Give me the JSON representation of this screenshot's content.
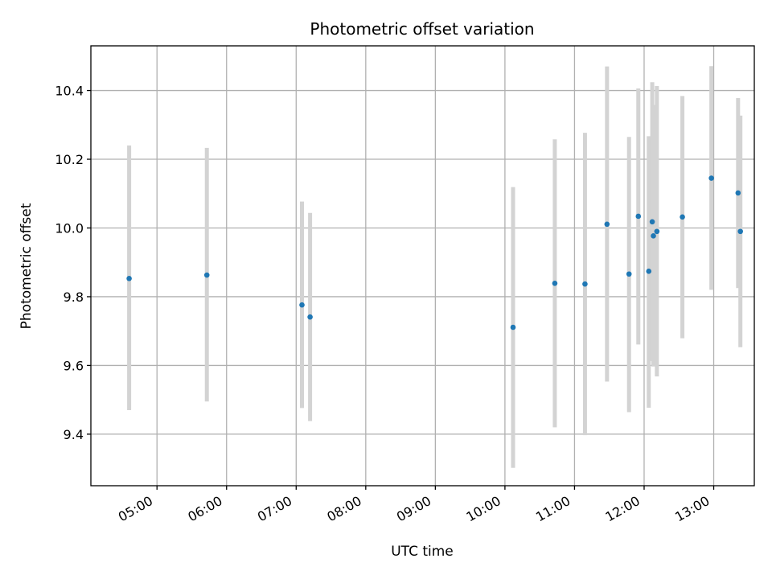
{
  "chart_data": {
    "type": "scatter",
    "title": "Photometric offset variation",
    "xlabel": "UTC time",
    "ylabel": "Photometric offset",
    "x_ticks": [
      "05:00",
      "06:00",
      "07:00",
      "08:00",
      "09:00",
      "10:00",
      "11:00",
      "12:00",
      "13:00"
    ],
    "x_tick_hours": [
      5,
      6,
      7,
      8,
      9,
      10,
      11,
      12,
      13
    ],
    "y_ticks": [
      "9.4",
      "9.6",
      "9.8",
      "10.0",
      "10.2",
      "10.4"
    ],
    "y_tick_values": [
      9.4,
      9.6,
      9.8,
      10.0,
      10.2,
      10.4
    ],
    "xlim": [
      "04:03",
      "13:35"
    ],
    "ylim": [
      9.25,
      10.53
    ],
    "grid": true,
    "series": [
      {
        "points": [
          {
            "time": "04:36",
            "y": 9.853,
            "lo": 9.47,
            "hi": 10.24
          },
          {
            "time": "05:43",
            "y": 9.863,
            "lo": 9.495,
            "hi": 10.233
          },
          {
            "time": "07:05",
            "y": 9.776,
            "lo": 9.476,
            "hi": 10.077
          },
          {
            "time": "07:12",
            "y": 9.741,
            "lo": 9.438,
            "hi": 10.044
          },
          {
            "time": "10:07",
            "y": 9.711,
            "lo": 9.302,
            "hi": 10.119
          },
          {
            "time": "10:43",
            "y": 9.839,
            "lo": 9.42,
            "hi": 10.258
          },
          {
            "time": "11:09",
            "y": 9.837,
            "lo": 9.397,
            "hi": 10.277
          },
          {
            "time": "11:28",
            "y": 10.011,
            "lo": 9.553,
            "hi": 10.47
          },
          {
            "time": "11:47",
            "y": 9.866,
            "lo": 9.464,
            "hi": 10.265
          },
          {
            "time": "11:55",
            "y": 10.034,
            "lo": 9.661,
            "hi": 10.406
          },
          {
            "time": "12:04",
            "y": 9.874,
            "lo": 9.477,
            "hi": 10.267
          },
          {
            "time": "12:07",
            "y": 10.018,
            "lo": 9.613,
            "hi": 10.424
          },
          {
            "time": "12:08",
            "y": 9.977,
            "lo": 9.597,
            "hi": 10.358
          },
          {
            "time": "12:11",
            "y": 9.99,
            "lo": 9.568,
            "hi": 10.413
          },
          {
            "time": "12:33",
            "y": 10.032,
            "lo": 9.679,
            "hi": 10.384
          },
          {
            "time": "12:58",
            "y": 10.145,
            "lo": 9.82,
            "hi": 10.471
          },
          {
            "time": "13:21",
            "y": 10.102,
            "lo": 9.825,
            "hi": 10.378
          },
          {
            "time": "13:23",
            "y": 9.99,
            "lo": 9.653,
            "hi": 10.327
          }
        ]
      }
    ]
  }
}
